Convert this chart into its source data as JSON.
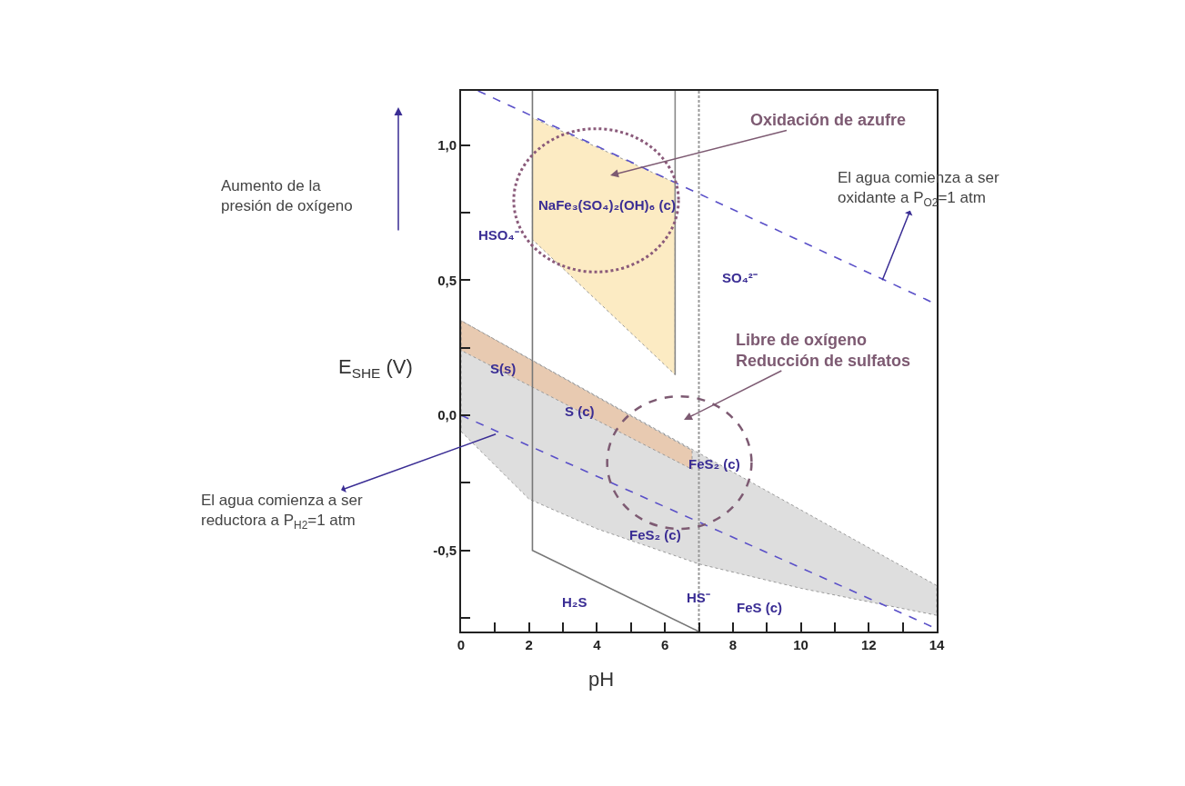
{
  "chart_data": {
    "type": "line",
    "xlabel": "pH",
    "ylabel": "E$_{SHE}$ (V)",
    "xlim": [
      0,
      14
    ],
    "ylim": [
      -0.8,
      1.2
    ],
    "xticks": [
      0,
      {
        "value": 1,
        "label": null
      },
      2,
      {
        "value": 3,
        "label": null
      },
      4,
      {
        "value": 5,
        "label": null
      },
      6,
      {
        "value": 7,
        "label": null
      },
      8,
      {
        "value": 9,
        "label": null
      },
      10,
      {
        "value": 11,
        "label": null
      },
      12,
      {
        "value": 13,
        "label": null
      },
      14
    ],
    "yticks": [
      {
        "value": -0.75,
        "label": null
      },
      {
        "value": -0.5,
        "label": "-0,5"
      },
      {
        "value": -0.25,
        "label": null
      },
      {
        "value": 0,
        "label": "0,0"
      },
      {
        "value": 0.25,
        "label": null
      },
      {
        "value": 0.5,
        "label": "0,5"
      },
      {
        "value": 0.75,
        "label": null
      },
      {
        "value": 1,
        "label": "1,0"
      }
    ],
    "series": [
      {
        "type": "area",
        "color": "#f8d27a",
        "x": [
          2.1,
          2.1,
          6.3,
          6.3,
          2.1
        ],
        "values": [
          0.65,
          1.1,
          0.86,
          0.15,
          0.65
        ]
      },
      {
        "type": "area",
        "color": "#b5b5b5",
        "x": [
          0,
          2,
          4,
          7,
          10,
          14,
          14,
          0,
          0
        ],
        "values": [
          -0.06,
          -0.31,
          -0.42,
          -0.55,
          -0.64,
          -0.74,
          -0.63,
          0.35,
          -0.06
        ]
      },
      {
        "type": "area",
        "color": "#f5b27a",
        "x": [
          0,
          0,
          6.8,
          6.8,
          0
        ],
        "values": [
          0.35,
          0.24,
          -0.2,
          -0.13,
          0.35
        ]
      },
      {
        "color": "#5a50c8",
        "line_style": "dashed",
        "x": [
          0.5,
          14
        ],
        "values": [
          1.2,
          0.41
        ]
      },
      {
        "color": "#5a50c8",
        "line_style": "dashed",
        "x": [
          0,
          14
        ],
        "values": [
          0,
          -0.79
        ]
      },
      {
        "color": "#777777",
        "line_style": "solid",
        "x": [
          2.1,
          2.1,
          7
        ],
        "values": [
          1.2,
          -0.5,
          -0.8
        ]
      },
      {
        "color": "#888888",
        "line_style": "solid",
        "x": [
          6.3,
          6.3
        ],
        "values": [
          1.2,
          0.15
        ]
      },
      {
        "color": "#999999",
        "line_style": "dotted",
        "x": [
          7,
          7,
          7
        ],
        "values": [
          1.2,
          0.2,
          -0.8
        ]
      }
    ],
    "annotations": [
      "HSO₄⁻",
      "NaFe₃(SO₄)₂(OH)₆ (c)",
      "SO₄²⁻",
      "S(s)",
      "S (c)",
      "FeS₂ (c)",
      "FeS₂ (c)",
      "H₂S",
      "HS⁻",
      "FeS (c)",
      "Oxidación de azufre",
      "Libre de oxígeno\nReducción de sulfatos",
      {
        "text": "El agua comienza a ser\noxidante a P$_{O2}$=1 atm",
        "x": 12.4,
        "y": 0.5
      },
      {
        "text": "El agua comienza a ser\nreductora a P$_{H2}$=1 atm",
        "x": 1.02,
        "y": -0.07
      },
      "Aumento de la\npresión de oxígeno"
    ]
  }
}
